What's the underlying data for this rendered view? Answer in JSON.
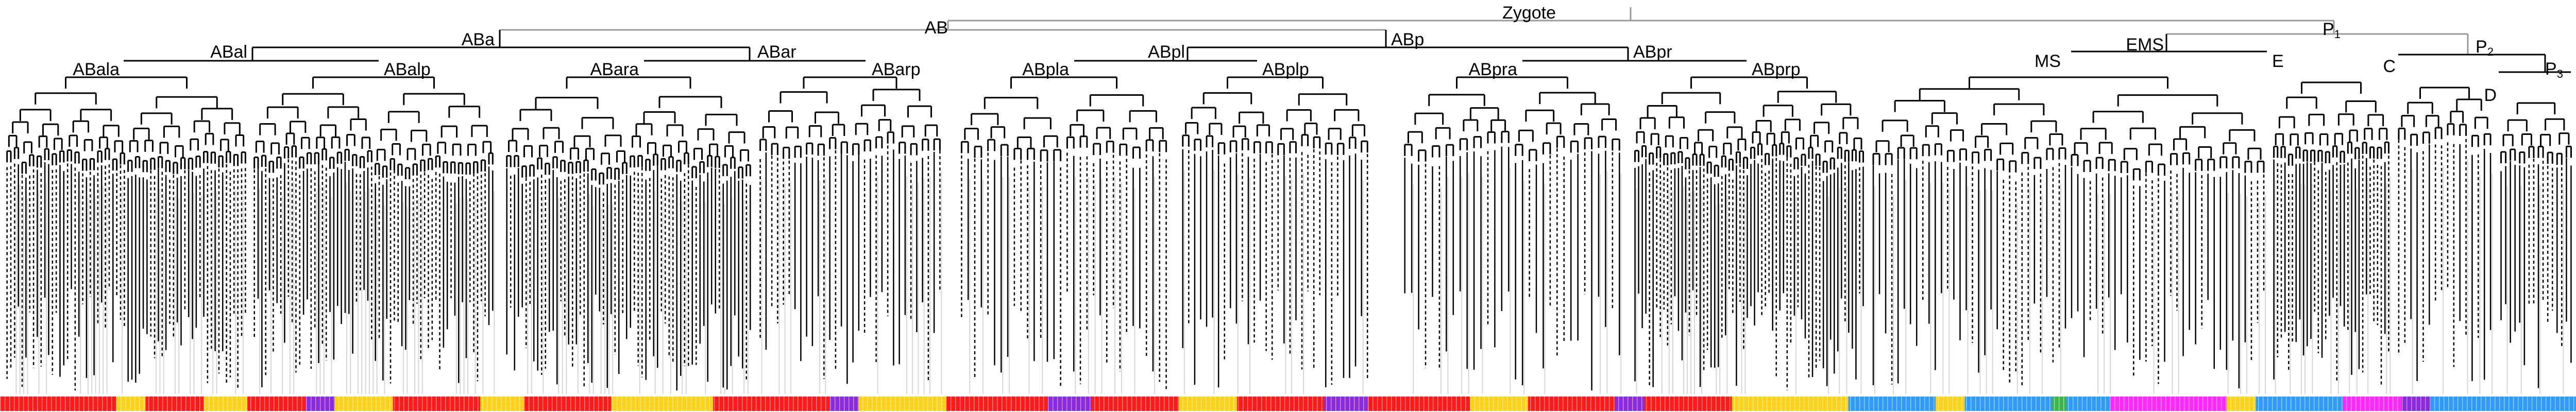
{
  "lineage": {
    "root": "Zygote",
    "labels": {
      "zygote": "Zygote",
      "AB": "AB",
      "P1": "P",
      "P1_sub": "1",
      "ABa": "ABa",
      "ABp": "ABp",
      "EMS": "EMS",
      "P2": "P",
      "P2_sub": "2",
      "ABal": "ABal",
      "ABar": "ABar",
      "ABpl": "ABpl",
      "ABpr": "ABpr",
      "MS": "MS",
      "E": "E",
      "C": "C",
      "P3": "P",
      "P3_sub": "3",
      "D": "D",
      "ABala": "ABala",
      "ABalp": "ABalp",
      "ABara": "ABara",
      "ABarp": "ABarp",
      "ABpla": "ABpla",
      "ABplp": "ABplp",
      "ABpra": "ABpra",
      "ABprp": "ABprp"
    }
  },
  "colors": {
    "tree_line": "#000000",
    "gray_branch": "#9a9a9a",
    "light_leaf": "#d6d6d6",
    "fate_palette": [
      "#ff1a1a",
      "#ffd21a",
      "#8a2be2",
      "#2f9bff",
      "#ff29ff",
      "#9a9a9a",
      "#3cb44b",
      "#a0522d"
    ]
  },
  "fate_bar": {
    "note": "",
    "segments": [
      {
        "color": "#ff1a1a",
        "frac": 0.04
      },
      {
        "color": "#ffd21a",
        "frac": 0.01
      },
      {
        "color": "#ff1a1a",
        "frac": 0.02
      },
      {
        "color": "#ffd21a",
        "frac": 0.015
      },
      {
        "color": "#ff1a1a",
        "frac": 0.02
      },
      {
        "color": "#8a2be2",
        "frac": 0.01
      },
      {
        "color": "#ffd21a",
        "frac": 0.02
      },
      {
        "color": "#ff1a1a",
        "frac": 0.03
      },
      {
        "color": "#ffd21a",
        "frac": 0.015
      },
      {
        "color": "#ff1a1a",
        "frac": 0.03
      },
      {
        "color": "#ffd21a",
        "frac": 0.035
      },
      {
        "color": "#ff1a1a",
        "frac": 0.04
      },
      {
        "color": "#8a2be2",
        "frac": 0.01
      },
      {
        "color": "#ffd21a",
        "frac": 0.03
      },
      {
        "color": "#ff1a1a",
        "frac": 0.035
      },
      {
        "color": "#8a2be2",
        "frac": 0.015
      },
      {
        "color": "#ff1a1a",
        "frac": 0.03
      },
      {
        "color": "#ffd21a",
        "frac": 0.02
      },
      {
        "color": "#ff1a1a",
        "frac": 0.03
      },
      {
        "color": "#8a2be2",
        "frac": 0.015
      },
      {
        "color": "#ff1a1a",
        "frac": 0.035
      },
      {
        "color": "#ffd21a",
        "frac": 0.02
      },
      {
        "color": "#ff1a1a",
        "frac": 0.03
      },
      {
        "color": "#8a2be2",
        "frac": 0.01
      },
      {
        "color": "#ff1a1a",
        "frac": 0.03
      },
      {
        "color": "#ffd21a",
        "frac": 0.04
      },
      {
        "color": "#2f9bff",
        "frac": 0.03
      },
      {
        "color": "#ffd21a",
        "frac": 0.01
      },
      {
        "color": "#2f9bff",
        "frac": 0.03
      },
      {
        "color": "#3cb44b",
        "frac": 0.005
      },
      {
        "color": "#2f9bff",
        "frac": 0.015
      },
      {
        "color": "#ff29ff",
        "frac": 0.04
      },
      {
        "color": "#ffd21a",
        "frac": 0.01
      },
      {
        "color": "#2f9bff",
        "frac": 0.03
      },
      {
        "color": "#ff29ff",
        "frac": 0.02
      },
      {
        "color": "#8a2be2",
        "frac": 0.01
      },
      {
        "color": "#2f9bff",
        "frac": 0.05
      }
    ]
  }
}
